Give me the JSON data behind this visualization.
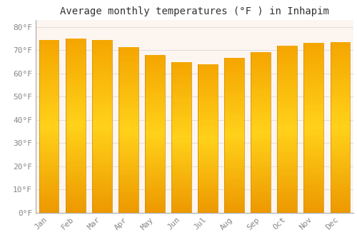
{
  "title": "Average monthly temperatures (°F ) in Inhapim",
  "months": [
    "Jan",
    "Feb",
    "Mar",
    "Apr",
    "May",
    "Jun",
    "Jul",
    "Aug",
    "Sep",
    "Oct",
    "Nov",
    "Dec"
  ],
  "values": [
    74.3,
    75.0,
    74.3,
    71.2,
    68.0,
    64.9,
    63.9,
    66.7,
    69.1,
    71.8,
    73.0,
    73.6
  ],
  "background_color": "#ffffff",
  "plot_bg_color": "#fdf5f0",
  "grid_color": "#dddddd",
  "bar_color_bottom": "#F5A800",
  "bar_color_mid": "#FFD050",
  "bar_color_top": "#F5A800",
  "bar_edge_color": "#CC8800",
  "yticks": [
    0,
    10,
    20,
    30,
    40,
    50,
    60,
    70,
    80
  ],
  "ylim": [
    0,
    83
  ],
  "title_fontsize": 10,
  "tick_fontsize": 8,
  "tick_color": "#888888"
}
